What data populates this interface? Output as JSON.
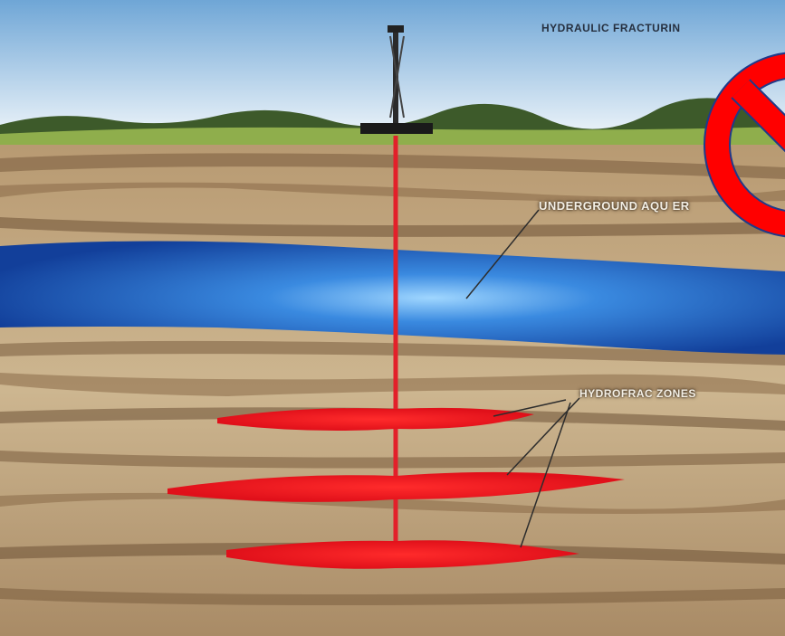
{
  "labels": {
    "title": "HYDRAULIC FRACTURIN",
    "aquifer": "UNDERGROUND AQU   ER",
    "frac_zones": "HYDROFRAC ZONES"
  },
  "colors": {
    "sky_top": "#6fa6d6",
    "sky_bottom": "#e3eef7",
    "grass": "#8fae4c",
    "soil_light": "#c8b08a",
    "soil_dark": "#8e7152",
    "aquifer": "#1e5fc2",
    "aquifer_highlight": "#7cc6ff",
    "well_bore": "#e2202a",
    "fracture": "#ff1a1a",
    "prohibition_sign": "#ff0000",
    "prohibition_outline": "#1f3a8a"
  },
  "icons": {
    "rig": "drilling-rig-icon",
    "prohibition": "prohibition-sign-icon"
  }
}
